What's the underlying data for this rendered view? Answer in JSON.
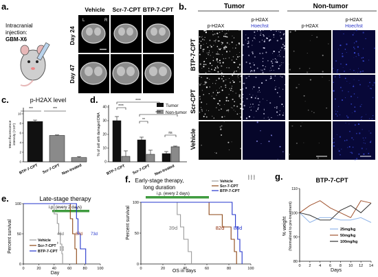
{
  "panel_labels": [
    "a.",
    "b.",
    "c.",
    "d.",
    "e.",
    "f.",
    "g."
  ],
  "panel_a": {
    "injection_label_line1": "Intracranial",
    "injection_label_line2": "injection:",
    "injection_label_line3": "GBM-X6",
    "columns": [
      "Vehicle",
      "Scr-7-CPT",
      "BTP-7-CPT"
    ],
    "rows": [
      "Day 24",
      "Day 47"
    ],
    "orientation_left": "L",
    "orientation_right": "R"
  },
  "panel_b": {
    "group_tumor": "Tumor",
    "group_nontumor": "Non-tumor",
    "channel_1": "p-H2AX",
    "channel_2_line1": "p-H2AX",
    "channel_2_line2": "Hoechst",
    "rows": [
      "BTP-7-CPT",
      "Scr-CPT",
      "Vehicle"
    ]
  },
  "chart_data": [
    {
      "panel": "c",
      "type": "bar",
      "title": "p-H2AX level",
      "ylabel_line1": "Mean fluorescence",
      "ylabel_line2": "intensity (×10⁴)",
      "categories": [
        "BTP-7-CPT",
        "Scr-7-CPT",
        "Non-treated"
      ],
      "values": [
        8.4,
        5.5,
        0.9
      ],
      "errors": [
        0.3,
        0.1,
        0.2
      ],
      "colors": [
        "#111111",
        "#8a8a8a",
        "#8a8a8a"
      ],
      "ylim": [
        0,
        10
      ],
      "significance": [
        "***",
        "***"
      ]
    },
    {
      "panel": "d",
      "type": "bar",
      "ylabel": "% of cell with damaged DNA",
      "categories": [
        "BTP-7-CPT",
        "Scr-7-CPT",
        "Non-treated"
      ],
      "series": [
        {
          "name": "Tumor",
          "values": [
            30,
            16,
            6
          ],
          "errors": [
            3,
            2,
            1.5
          ],
          "color": "#111111"
        },
        {
          "name": "Non-tumor",
          "values": [
            4,
            5.5,
            11
          ],
          "errors": [
            4,
            3,
            0.5
          ],
          "color": "#8a8a8a"
        }
      ],
      "ylim": [
        0,
        40
      ],
      "significance": [
        "****",
        "****",
        "****",
        "**",
        "ns"
      ]
    },
    {
      "panel": "e",
      "type": "line",
      "title": "Late-stage therapy",
      "treatment_bar_label": "i.p. (every 2 days)",
      "xlabel": "Day",
      "ylabel": "Percent survival",
      "xlim": [
        0,
        100
      ],
      "ylim": [
        0,
        100
      ],
      "xticks": [
        0,
        20,
        40,
        60,
        80,
        100
      ],
      "yticks": [
        0,
        50,
        100
      ],
      "series": [
        {
          "name": "Vehicle",
          "color": "#999999",
          "median_label": "46d",
          "steps": [
            [
              0,
              100
            ],
            [
              40,
              100
            ],
            [
              40,
              83
            ],
            [
              44,
              83
            ],
            [
              44,
              67
            ],
            [
              46,
              67
            ],
            [
              46,
              50
            ],
            [
              48,
              50
            ],
            [
              48,
              33
            ],
            [
              50,
              33
            ],
            [
              50,
              17
            ],
            [
              51,
              17
            ],
            [
              51,
              0
            ]
          ]
        },
        {
          "name": "Scr-7-CPT",
          "color": "#8b4513",
          "median_label": "67d",
          "steps": [
            [
              0,
              100
            ],
            [
              61,
              100
            ],
            [
              61,
              75
            ],
            [
              64,
              75
            ],
            [
              64,
              50
            ],
            [
              67,
              50
            ],
            [
              67,
              25
            ],
            [
              69,
              25
            ],
            [
              69,
              0
            ]
          ]
        },
        {
          "name": "BTP-7-CPT",
          "color": "#2233cc",
          "median_label": "73d",
          "steps": [
            [
              0,
              100
            ],
            [
              69,
              100
            ],
            [
              69,
              75
            ],
            [
              71,
              75
            ],
            [
              71,
              50
            ],
            [
              74,
              50
            ],
            [
              74,
              25
            ],
            [
              81,
              25
            ],
            [
              81,
              0
            ]
          ]
        }
      ],
      "significance": [
        "**",
        "****",
        "****"
      ]
    },
    {
      "panel": "f",
      "type": "line",
      "title_line1": "Early-stage therapy,",
      "title_line2": "long duration",
      "treatment_bar_label": "i.p. (every 2 days)",
      "xlabel": "OS in days",
      "ylabel": "Percent survival",
      "xlim": [
        0,
        100
      ],
      "ylim": [
        0,
        100
      ],
      "xticks": [
        0,
        20,
        40,
        60,
        80,
        100
      ],
      "yticks": [
        0,
        50,
        100
      ],
      "series": [
        {
          "name": "Vehicle",
          "color": "#999999",
          "median_label": "39d",
          "steps": [
            [
              0,
              100
            ],
            [
              33,
              100
            ],
            [
              33,
              80
            ],
            [
              36,
              80
            ],
            [
              36,
              60
            ],
            [
              39,
              60
            ],
            [
              39,
              40
            ],
            [
              43,
              40
            ],
            [
              43,
              20
            ],
            [
              46,
              20
            ],
            [
              46,
              0
            ]
          ]
        },
        {
          "name": "Scr-7-CPT",
          "color": "#8b4513",
          "median_label": "82d",
          "steps": [
            [
              0,
              100
            ],
            [
              62,
              100
            ],
            [
              62,
              80
            ],
            [
              74,
              80
            ],
            [
              74,
              60
            ],
            [
              82,
              60
            ],
            [
              82,
              40
            ],
            [
              85,
              40
            ],
            [
              85,
              20
            ],
            [
              87,
              20
            ],
            [
              87,
              0
            ]
          ]
        },
        {
          "name": "BTP-7-CPT",
          "color": "#2233cc",
          "median_label": "88d",
          "steps": [
            [
              0,
              100
            ],
            [
              83,
              100
            ],
            [
              83,
              80
            ],
            [
              86,
              80
            ],
            [
              86,
              60
            ],
            [
              88,
              60
            ],
            [
              88,
              40
            ],
            [
              90,
              40
            ],
            [
              90,
              20
            ],
            [
              92,
              20
            ],
            [
              92,
              0
            ]
          ]
        }
      ],
      "significance": [
        "****",
        "****",
        "****"
      ]
    },
    {
      "panel": "g",
      "type": "line",
      "title": "BTP-7-CPT",
      "xlabel": "Days",
      "ylabel_line1": "% weight",
      "ylabel_line2": "(Normalized to pre-treatment)",
      "xlim": [
        0,
        14
      ],
      "ylim": [
        80,
        110
      ],
      "xticks": [
        0,
        2,
        4,
        6,
        8,
        10,
        12,
        14
      ],
      "yticks": [
        80,
        90,
        100,
        110
      ],
      "x": [
        0,
        2,
        4,
        6,
        8,
        10,
        12,
        14
      ],
      "series": [
        {
          "name": "25mg/kg",
          "color": "#8fb4e8",
          "values": [
            100,
            96,
            98,
            98,
            97,
            97,
            98,
            96
          ]
        },
        {
          "name": "50mg/kg",
          "color": "#a0522d",
          "values": [
            100,
            103,
            105,
            102,
            100,
            98,
            105,
            104
          ]
        },
        {
          "name": "100mg/kg",
          "color": "#333333",
          "values": [
            100,
            99,
            97,
            97,
            101,
            103,
            100,
            104
          ]
        }
      ]
    }
  ]
}
